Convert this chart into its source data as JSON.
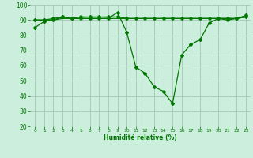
{
  "bg_color": "#cceedd",
  "grid_color": "#aaccbb",
  "line_color": "#007700",
  "marker_color": "#007700",
  "xlabel": "Humidité relative (%)",
  "xlabel_color": "#007700",
  "tick_color": "#007700",
  "ylim": [
    20,
    100
  ],
  "xlim": [
    -0.5,
    23.5
  ],
  "yticks": [
    20,
    30,
    40,
    50,
    60,
    70,
    80,
    90,
    100
  ],
  "xticks": [
    0,
    1,
    2,
    3,
    4,
    5,
    6,
    7,
    8,
    9,
    10,
    11,
    12,
    13,
    14,
    15,
    16,
    17,
    18,
    19,
    20,
    21,
    22,
    23
  ],
  "line1": [
    85,
    89,
    90,
    92,
    91,
    91,
    91,
    91,
    91,
    95,
    82,
    59,
    55,
    46,
    43,
    35,
    67,
    74,
    77,
    88,
    91,
    90,
    91,
    93
  ],
  "line2": [
    90,
    90,
    91,
    92,
    91,
    92,
    92,
    92,
    92,
    92,
    91,
    91,
    91,
    91,
    91,
    91,
    91,
    91,
    91,
    91,
    91,
    91,
    91,
    92
  ],
  "line3": [
    90,
    90,
    90,
    91,
    91,
    91,
    91,
    91,
    91,
    91,
    91,
    91,
    91,
    91,
    91,
    91,
    91,
    91,
    91,
    91,
    91,
    91,
    91,
    92
  ]
}
